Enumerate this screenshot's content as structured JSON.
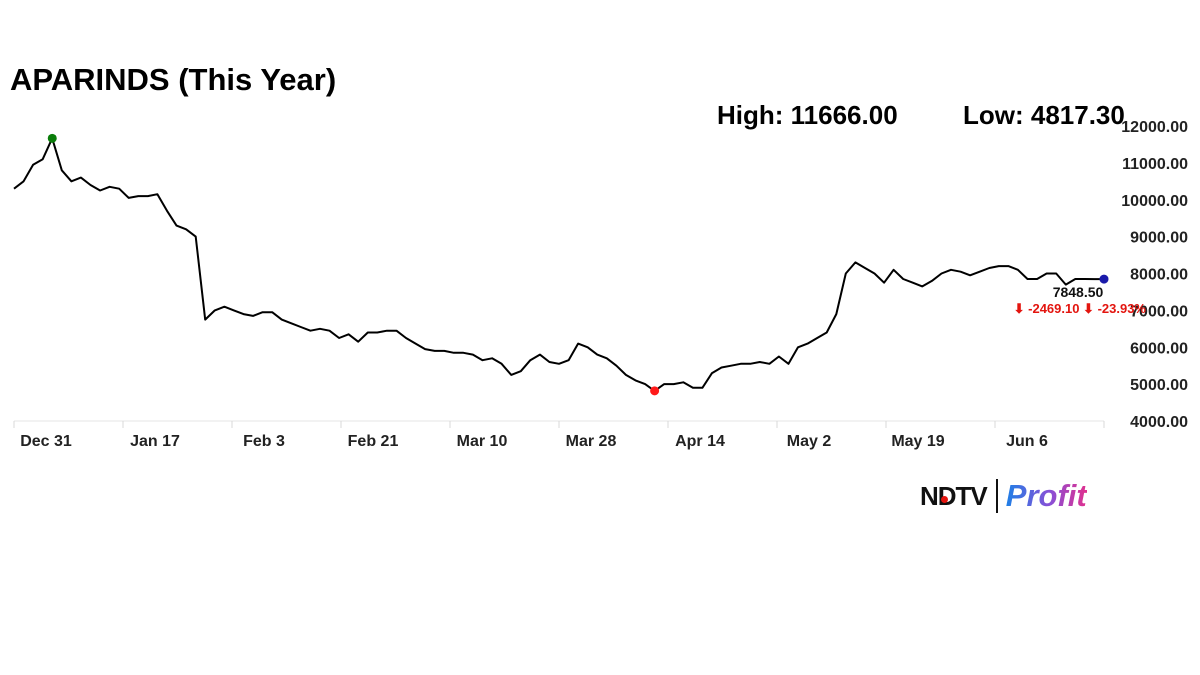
{
  "header": {
    "title": "APARINDS (This Year)",
    "high_text": "High: 11666.00",
    "low_text": "Low: 4817.30"
  },
  "brand": {
    "ndtv": "NDTV",
    "profit": "Profit"
  },
  "chart_data": {
    "type": "line",
    "title": "APARINDS (This Year)",
    "xlabel": "",
    "ylabel": "",
    "x_ticks": [
      "Dec 31",
      "Jan 17",
      "Feb 3",
      "Feb 21",
      "Mar 10",
      "Mar 28",
      "Apr 14",
      "May 2",
      "May 19",
      "Jun 6"
    ],
    "y_ticks": [
      "12000.00",
      "11000.00",
      "10000.00",
      "9000.00",
      "8000.00",
      "7000.00",
      "6000.00",
      "5000.00",
      "4000.00"
    ],
    "ylim": [
      4000,
      12000
    ],
    "grid": false,
    "legend": "none",
    "high": 11666.0,
    "low": 4817.3,
    "last_value_label": "7848.50",
    "change_label": "⬇ -2469.10 ⬇ -23.93%",
    "colors": {
      "line": "#000000",
      "high_marker": "#0a7d0a",
      "low_marker": "#ff1a1a",
      "last_marker": "#1a1aaa",
      "change": "#e3150f"
    },
    "series": [
      {
        "x": [
          "Dec 27",
          "Dec 30",
          "Dec 31",
          "Jan 1",
          "Jan 2",
          "Jan 3",
          "Jan 6",
          "Jan 7",
          "Jan 8",
          "Jan 9",
          "Jan 10",
          "Jan 13",
          "Jan 14",
          "Jan 15",
          "Jan 16",
          "Jan 17",
          "Jan 20",
          "Jan 21",
          "Jan 22",
          "Jan 23",
          "Jan 24",
          "Jan 27",
          "Jan 28",
          "Jan 29",
          "Jan 30",
          "Jan 31",
          "Feb 3",
          "Feb 4",
          "Feb 5",
          "Feb 6",
          "Feb 7",
          "Feb 10",
          "Feb 11",
          "Feb 12",
          "Feb 13",
          "Feb 14",
          "Feb 17",
          "Feb 18",
          "Feb 19",
          "Feb 20",
          "Feb 21",
          "Feb 24",
          "Feb 25",
          "Feb 27",
          "Feb 28",
          "Mar 3",
          "Mar 4",
          "Mar 5",
          "Mar 6",
          "Mar 7",
          "Mar 10",
          "Mar 11",
          "Mar 12",
          "Mar 13",
          "Mar 17",
          "Mar 18",
          "Mar 19",
          "Mar 20",
          "Mar 21",
          "Mar 24",
          "Mar 25",
          "Mar 26",
          "Mar 27",
          "Mar 28",
          "Apr 1",
          "Apr 2",
          "Apr 3",
          "Apr 4",
          "Apr 7",
          "Apr 8",
          "Apr 9",
          "Apr 11",
          "Apr 15",
          "Apr 16",
          "Apr 17",
          "Apr 21",
          "Apr 22",
          "Apr 23",
          "Apr 24",
          "Apr 25",
          "Apr 28",
          "Apr 29",
          "Apr 30",
          "May 2",
          "May 5",
          "May 6",
          "May 7",
          "May 8",
          "May 9",
          "May 12",
          "May 13",
          "May 14",
          "May 15",
          "May 16",
          "May 19",
          "May 20",
          "May 21",
          "May 22",
          "May 23",
          "May 26",
          "May 27",
          "May 28",
          "May 29",
          "May 30",
          "Jun 2",
          "Jun 3",
          "Jun 4",
          "Jun 5",
          "Jun 6",
          "Jun 9",
          "Jun 10",
          "Jun 11",
          "Jun 12",
          "Jun 13",
          "Jun 16"
        ],
        "y": [
          10300,
          10500,
          10950,
          11100,
          11666,
          10800,
          10500,
          10600,
          10400,
          10250,
          10350,
          10300,
          10050,
          10100,
          10100,
          10150,
          9700,
          9300,
          9200,
          9000,
          6750,
          7000,
          7100,
          7000,
          6900,
          6850,
          6950,
          6950,
          6750,
          6650,
          6550,
          6450,
          6500,
          6450,
          6250,
          6350,
          6150,
          6400,
          6400,
          6450,
          6450,
          6250,
          6100,
          5950,
          5900,
          5900,
          5850,
          5850,
          5800,
          5650,
          5700,
          5550,
          5250,
          5350,
          5650,
          5800,
          5600,
          5550,
          5650,
          6100,
          6000,
          5800,
          5700,
          5500,
          5250,
          5100,
          5000,
          4817.3,
          5000,
          5000,
          5050,
          4900,
          4900,
          5300,
          5450,
          5500,
          5550,
          5550,
          5600,
          5550,
          5750,
          5550,
          6000,
          6100,
          6250,
          6400,
          6900,
          8000,
          8300,
          8150,
          8000,
          7750,
          8100,
          7850,
          7750,
          7650,
          7800,
          8000,
          8100,
          8050,
          7950,
          8050,
          8150,
          8200,
          8200,
          8100,
          7850,
          7850,
          8000,
          8000,
          7700,
          7850,
          7850,
          7848.5,
          7848.5
        ]
      }
    ]
  }
}
